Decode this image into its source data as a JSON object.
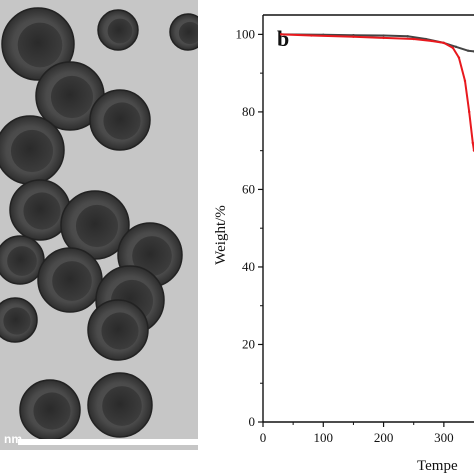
{
  "panel_a": {
    "scale_bar_unit": "nm"
  },
  "chart_data": {
    "type": "line",
    "panel_label": "b",
    "title": "",
    "xlabel": "Tempe",
    "ylabel": "Weight/%",
    "xlim": [
      0,
      350
    ],
    "ylim": [
      0,
      105
    ],
    "x_ticks": [
      0,
      100,
      200,
      300
    ],
    "y_ticks": [
      0,
      20,
      40,
      60,
      80,
      100
    ],
    "grid": false,
    "series": [
      {
        "color": "#444444",
        "x": [
          30,
          100,
          150,
          200,
          240,
          270,
          300,
          320,
          340,
          350
        ],
        "y": [
          100,
          99.9,
          99.8,
          99.7,
          99.5,
          98.8,
          97.8,
          96.8,
          95.8,
          95.6
        ]
      },
      {
        "color": "#e8191e",
        "x": [
          30,
          80,
          150,
          200,
          250,
          280,
          300,
          315,
          325,
          335,
          342,
          348,
          350
        ],
        "y": [
          100,
          99.7,
          99.4,
          99.1,
          98.8,
          98.3,
          97.8,
          96.5,
          94,
          88,
          80,
          72,
          70
        ]
      }
    ]
  }
}
